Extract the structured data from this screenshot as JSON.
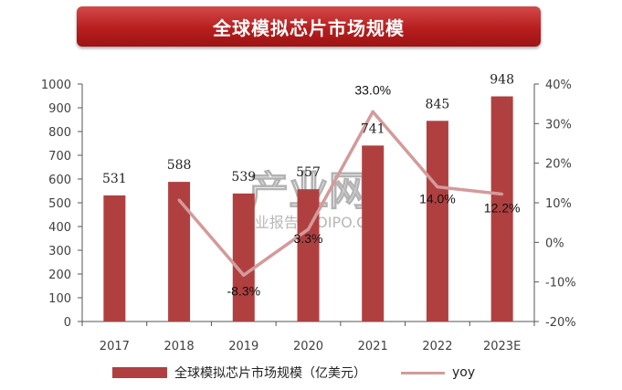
{
  "title": "全球模拟芯片市场规模",
  "watermark": {
    "main": "产业网",
    "sub": "行业报告 IPOIPO.CN"
  },
  "legend": {
    "bar_label": "全球模拟芯片市场规模（亿美元）",
    "line_label": "yoy"
  },
  "colors": {
    "bar": "#b04040",
    "line": "#d49a9a",
    "banner": "#b81e1e"
  },
  "chart_data": {
    "type": "bar",
    "categories": [
      "2017",
      "2018",
      "2019",
      "2020",
      "2021",
      "2022",
      "2023E"
    ],
    "series": [
      {
        "name": "全球模拟芯片市场规模（亿美元）",
        "type": "bar",
        "axis": "left",
        "values": [
          531,
          588,
          539,
          557,
          741,
          845,
          948
        ],
        "labels": [
          "531",
          "588",
          "539",
          "557",
          "741",
          "845",
          "948"
        ]
      },
      {
        "name": "yoy",
        "type": "line",
        "axis": "right",
        "values": [
          null,
          10.7,
          -8.3,
          3.3,
          33.0,
          14.0,
          12.2
        ],
        "labels": [
          null,
          null,
          "-8.3%",
          "3.3%",
          "33.0%",
          "14.0%",
          "12.2%"
        ]
      }
    ],
    "y_left": {
      "min": 0,
      "max": 1000,
      "ticks": [
        "0",
        "100",
        "200",
        "300",
        "400",
        "500",
        "600",
        "700",
        "800",
        "900",
        "1000"
      ]
    },
    "y_right": {
      "min": -20,
      "max": 40,
      "ticks": [
        "-20%",
        "-10%",
        "0%",
        "10%",
        "20%",
        "30%",
        "40%"
      ]
    },
    "legend_position": "bottom",
    "grid": false
  }
}
